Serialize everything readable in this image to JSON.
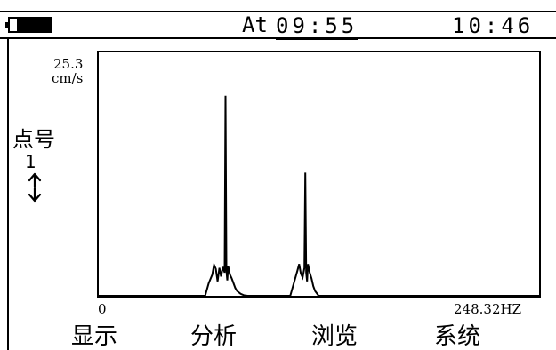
{
  "status_bar": {
    "at_label": "At",
    "start_time": "09:55",
    "clock": "10:46",
    "battery_icon": "battery-low-icon"
  },
  "axis": {
    "y_max": "25.3",
    "y_unit": "cm/s",
    "x_min": "0",
    "x_max": "248.32HZ"
  },
  "point": {
    "label": "点号",
    "number": "1",
    "arrow_icon": "up-down-arrow-icon"
  },
  "chart_data": {
    "type": "line",
    "xlim": [
      0,
      248.32
    ],
    "ylim": [
      0,
      25.3
    ],
    "x": [
      0,
      60,
      62,
      64,
      65,
      66,
      67,
      68,
      69,
      70,
      71,
      71.5,
      72,
      72.5,
      73,
      74,
      75,
      76,
      77,
      78,
      80,
      82,
      84,
      108,
      110,
      112,
      113,
      114,
      115,
      116,
      116.5,
      117,
      117.5,
      118,
      119,
      120,
      121,
      122,
      124,
      248.32
    ],
    "values": [
      0,
      0,
      1.3,
      2.2,
      3.2,
      2.8,
      1.5,
      2.9,
      2.0,
      3.0,
      2.4,
      20.8,
      2.6,
      1.6,
      3.1,
      2.2,
      1.8,
      1.3,
      0.8,
      0.5,
      0.2,
      0.05,
      0,
      0,
      1.3,
      2.6,
      3.3,
      2.3,
      1.9,
      2.9,
      12.8,
      2.4,
      1.5,
      3.3,
      2.4,
      1.8,
      1.0,
      0.5,
      0,
      0
    ],
    "grid": false
  },
  "menu": [
    {
      "label": "显示"
    },
    {
      "label": "分析"
    },
    {
      "label": "浏览"
    },
    {
      "label": "系统"
    }
  ],
  "colors": {
    "foreground": "#000000",
    "background": "#ffffff"
  }
}
